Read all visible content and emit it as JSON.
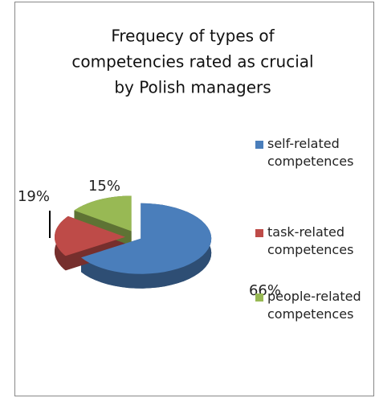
{
  "chart_data": {
    "type": "pie",
    "title": [
      "Frequecy of types of",
      "competencies rated as crucial",
      "by Polish managers"
    ],
    "categories": [
      "self-related competences",
      "task-related competences",
      "people-related competences"
    ],
    "values": [
      66,
      19,
      15
    ],
    "value_labels": [
      "66%",
      "19%",
      "15%"
    ],
    "colors": [
      "#4a7ebb",
      "#be4b48",
      "#98b954"
    ],
    "legend": "right"
  }
}
